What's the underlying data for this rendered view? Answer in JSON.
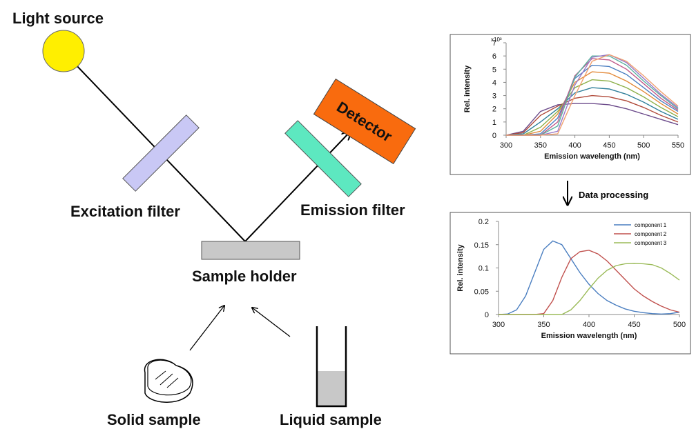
{
  "labels": {
    "light_source": "Light source",
    "excitation_filter": "Excitation filter",
    "emission_filter": "Emission filter",
    "detector": "Detector",
    "sample_holder": "Sample holder",
    "solid_sample": "Solid sample",
    "liquid_sample": "Liquid sample",
    "data_processing": "Data processing"
  },
  "chart_data": [
    {
      "type": "line",
      "y_unit": "x10³",
      "xlabel": "Emission wavelength (nm)",
      "ylabel": "Rel. intensity",
      "x": [
        300,
        325,
        350,
        375,
        400,
        425,
        450,
        475,
        500,
        525,
        550
      ],
      "xlim": [
        300,
        550
      ],
      "xticks": [
        300,
        350,
        400,
        450,
        500,
        550
      ],
      "ylim": [
        0,
        7
      ],
      "yticks": [
        0,
        1,
        2,
        3,
        4,
        5,
        6,
        7
      ],
      "series": [
        {
          "color": "#6b4a8a",
          "values": [
            0,
            0.3,
            1.8,
            2.3,
            2.4,
            2.4,
            2.3,
            2.0,
            1.6,
            1.2,
            0.8
          ]
        },
        {
          "color": "#b04a3a",
          "values": [
            0,
            0.2,
            1.5,
            2.2,
            2.8,
            3.0,
            2.9,
            2.6,
            2.1,
            1.5,
            1.0
          ]
        },
        {
          "color": "#2f7f9a",
          "values": [
            0,
            0.1,
            1.0,
            2.0,
            3.2,
            3.6,
            3.5,
            3.1,
            2.5,
            1.8,
            1.2
          ]
        },
        {
          "color": "#8db04a",
          "values": [
            0,
            0,
            0.6,
            1.8,
            3.6,
            4.2,
            4.1,
            3.6,
            2.9,
            2.1,
            1.4
          ]
        },
        {
          "color": "#e38a3a",
          "values": [
            0,
            0,
            0.3,
            1.6,
            4.0,
            4.8,
            4.7,
            4.1,
            3.3,
            2.4,
            1.6
          ]
        },
        {
          "color": "#4a7ec0",
          "values": [
            0,
            0,
            0.1,
            1.3,
            4.3,
            5.3,
            5.2,
            4.6,
            3.6,
            2.6,
            1.8
          ]
        },
        {
          "color": "#c05a8a",
          "values": [
            0,
            0,
            0,
            1.0,
            4.5,
            5.8,
            5.7,
            5.0,
            3.9,
            2.8,
            1.9
          ]
        },
        {
          "color": "#5ab0a0",
          "values": [
            0,
            0,
            0,
            0.7,
            4.4,
            6.0,
            6.0,
            5.3,
            4.1,
            3.0,
            2.0
          ]
        },
        {
          "color": "#9a7ac8",
          "values": [
            0,
            0,
            0,
            0.3,
            3.8,
            5.9,
            6.1,
            5.5,
            4.3,
            3.1,
            2.1
          ]
        },
        {
          "color": "#f0a070",
          "values": [
            0,
            0,
            0,
            0.1,
            3.0,
            5.6,
            6.1,
            5.6,
            4.5,
            3.3,
            2.2
          ]
        }
      ]
    },
    {
      "type": "line",
      "xlabel": "Emission wavelength (nm)",
      "ylabel": "Rel. intensity",
      "x": [
        300,
        310,
        320,
        330,
        340,
        350,
        360,
        370,
        380,
        390,
        400,
        410,
        420,
        430,
        440,
        450,
        460,
        470,
        480,
        490,
        500
      ],
      "xlim": [
        300,
        500
      ],
      "xticks": [
        300,
        350,
        400,
        450,
        500
      ],
      "ylim": [
        0,
        0.2
      ],
      "yticks": [
        0,
        0.05,
        0.1,
        0.15,
        0.2
      ],
      "series": [
        {
          "name": "component 1",
          "color": "#4a7ec0",
          "values": [
            0,
            0.001,
            0.01,
            0.04,
            0.09,
            0.14,
            0.158,
            0.15,
            0.12,
            0.09,
            0.065,
            0.045,
            0.03,
            0.02,
            0.012,
            0.007,
            0.004,
            0.002,
            0.001,
            0.002,
            0.005
          ]
        },
        {
          "name": "component 2",
          "color": "#c0504d",
          "values": [
            0,
            0,
            0,
            0,
            0,
            0.002,
            0.03,
            0.08,
            0.12,
            0.135,
            0.138,
            0.13,
            0.115,
            0.095,
            0.075,
            0.055,
            0.04,
            0.028,
            0.018,
            0.01,
            0.005
          ]
        },
        {
          "name": "component 3",
          "color": "#9bbb59",
          "values": [
            0,
            0,
            0,
            0,
            0,
            0,
            0,
            0,
            0.01,
            0.03,
            0.055,
            0.078,
            0.095,
            0.105,
            0.109,
            0.11,
            0.109,
            0.107,
            0.1,
            0.088,
            0.074
          ]
        }
      ]
    }
  ]
}
